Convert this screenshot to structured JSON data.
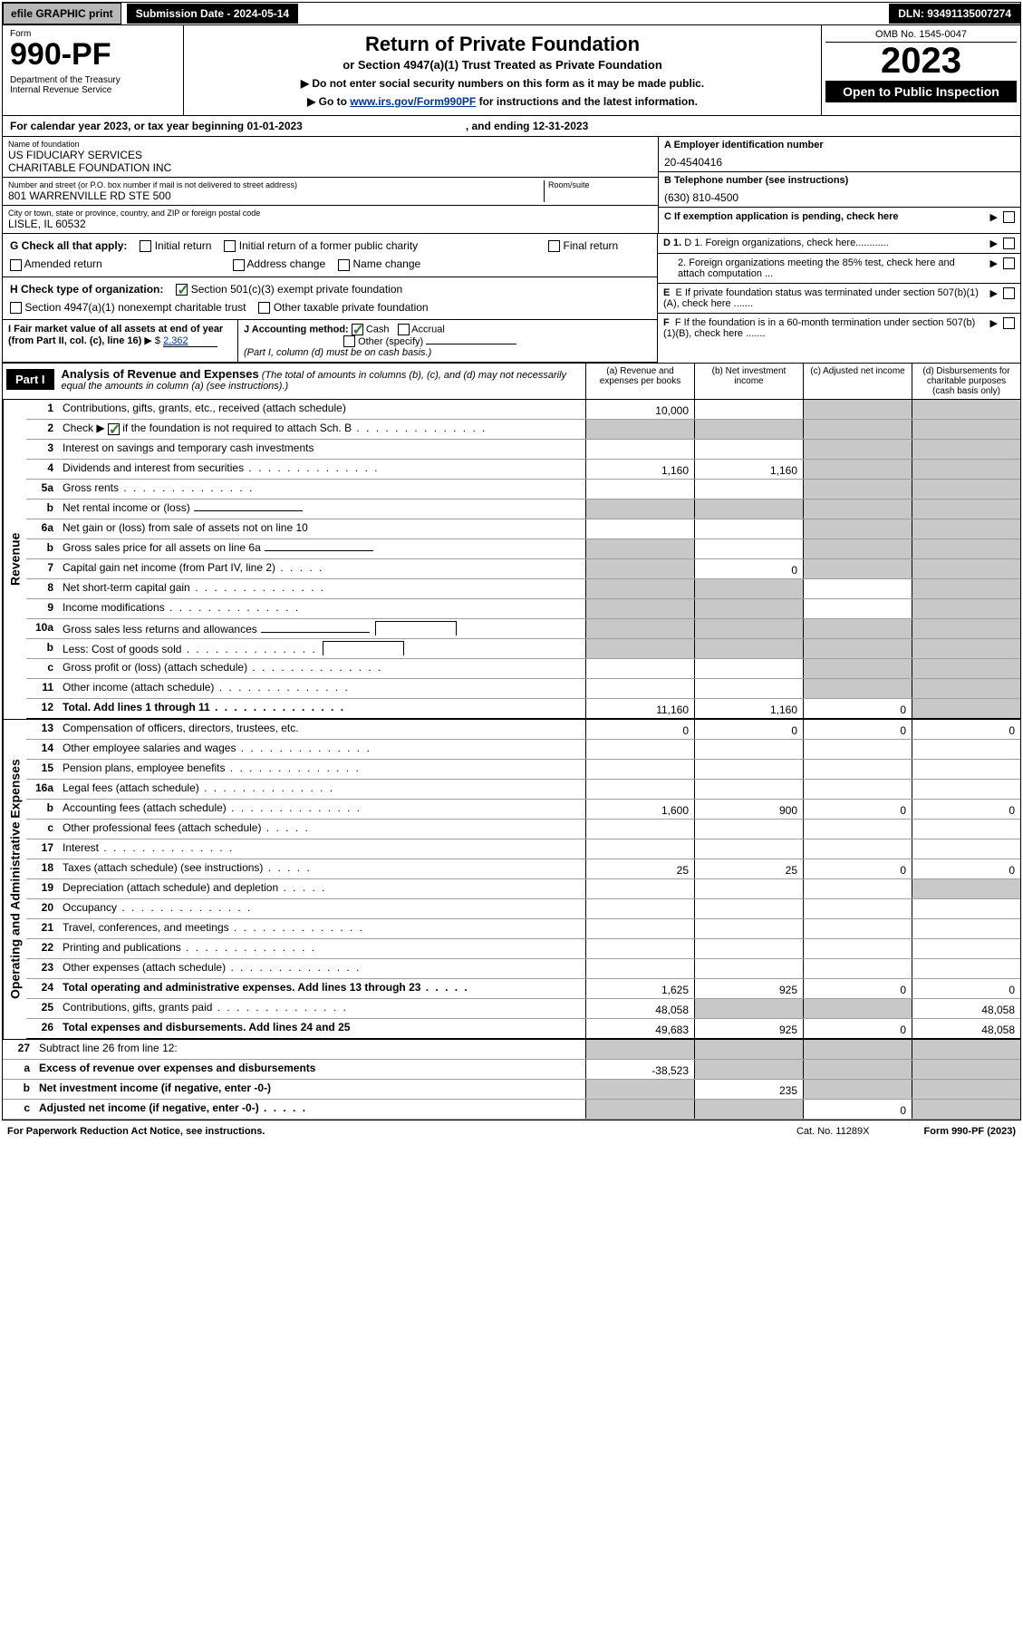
{
  "topbar": {
    "efile": "efile GRAPHIC print",
    "submission": "Submission Date - 2024-05-14",
    "dln": "DLN: 93491135007274"
  },
  "header": {
    "form_label": "Form",
    "form_number": "990-PF",
    "dept": "Department of the Treasury\nInternal Revenue Service",
    "title": "Return of Private Foundation",
    "subtitle": "or Section 4947(a)(1) Trust Treated as Private Foundation",
    "instr1": "▶ Do not enter social security numbers on this form as it may be made public.",
    "instr2_pre": "▶ Go to ",
    "instr2_link": "www.irs.gov/Form990PF",
    "instr2_post": " for instructions and the latest information.",
    "omb": "OMB No. 1545-0047",
    "year": "2023",
    "open_public": "Open to Public Inspection"
  },
  "cal": {
    "pre": "For calendar year 2023, or tax year beginning ",
    "begin": "01-01-2023",
    "mid": ", and ending ",
    "end": "12-31-2023"
  },
  "name": {
    "lbl": "Name of foundation",
    "val": "US FIDUCIARY SERVICES\nCHARITABLE FOUNDATION INC"
  },
  "ein": {
    "lbl": "A Employer identification number",
    "val": "20-4540416"
  },
  "addr": {
    "lbl": "Number and street (or P.O. box number if mail is not delivered to street address)",
    "val": "801 WARRENVILLE RD STE 500",
    "room_lbl": "Room/suite"
  },
  "phone": {
    "lbl": "B Telephone number (see instructions)",
    "val": "(630) 810-4500"
  },
  "city": {
    "lbl": "City or town, state or province, country, and ZIP or foreign postal code",
    "val": "LISLE, IL  60532"
  },
  "c_txt": "C If exemption application is pending, check here",
  "g": {
    "lbl": "G Check all that apply:",
    "o1": "Initial return",
    "o2": "Initial return of a former public charity",
    "o3": "Final return",
    "o4": "Amended return",
    "o5": "Address change",
    "o6": "Name change"
  },
  "d": {
    "d1": "D 1. Foreign organizations, check here............",
    "d2": "2. Foreign organizations meeting the 85% test, check here and attach computation ..."
  },
  "h": {
    "lbl": "H Check type of organization:",
    "o1": "Section 501(c)(3) exempt private foundation",
    "o2": "Section 4947(a)(1) nonexempt charitable trust",
    "o3": "Other taxable private foundation"
  },
  "e_txt": "E  If private foundation status was terminated under section 507(b)(1)(A), check here .......",
  "i": {
    "lbl": "I Fair market value of all assets at end of year (from Part II, col. (c), line 16)",
    "val_pre": "▶ $",
    "val": "2,362"
  },
  "j": {
    "lbl": "J Accounting method:",
    "o1": "Cash",
    "o2": "Accrual",
    "o3": "Other (specify)",
    "note": "(Part I, column (d) must be on cash basis.)"
  },
  "f_txt": "F  If the foundation is in a 60-month termination under section 507(b)(1)(B), check here .......",
  "part1": {
    "label": "Part I",
    "title": "Analysis of Revenue and Expenses",
    "note": "(The total of amounts in columns (b), (c), and (d) may not necessarily equal the amounts in column (a) (see instructions).)",
    "col_a": "(a)  Revenue and expenses per books",
    "col_b": "(b)  Net investment income",
    "col_c": "(c)  Adjusted net income",
    "col_d": "(d)  Disbursements for charitable purposes (cash basis only)"
  },
  "side_labels": {
    "rev": "Revenue",
    "exp": "Operating and Administrative Expenses"
  },
  "lines": {
    "1": {
      "t": "Contributions, gifts, grants, etc., received (attach schedule)",
      "a": "10,000"
    },
    "2": {
      "t_pre": "Check ▶",
      "t_post": " if the foundation is not required to attach Sch. B"
    },
    "3": {
      "t": "Interest on savings and temporary cash investments"
    },
    "4": {
      "t": "Dividends and interest from securities",
      "a": "1,160",
      "b": "1,160"
    },
    "5a": {
      "t": "Gross rents"
    },
    "5b": {
      "t": "Net rental income or (loss)"
    },
    "6a": {
      "t": "Net gain or (loss) from sale of assets not on line 10"
    },
    "6b": {
      "t": "Gross sales price for all assets on line 6a"
    },
    "7": {
      "t": "Capital gain net income (from Part IV, line 2)",
      "b": "0"
    },
    "8": {
      "t": "Net short-term capital gain"
    },
    "9": {
      "t": "Income modifications"
    },
    "10a": {
      "t": "Gross sales less returns and allowances"
    },
    "10b": {
      "t": "Less: Cost of goods sold"
    },
    "10c": {
      "t": "Gross profit or (loss) (attach schedule)"
    },
    "11": {
      "t": "Other income (attach schedule)"
    },
    "12": {
      "t": "Total. Add lines 1 through 11",
      "a": "11,160",
      "b": "1,160",
      "c": "0"
    },
    "13": {
      "t": "Compensation of officers, directors, trustees, etc.",
      "a": "0",
      "b": "0",
      "c": "0",
      "d": "0"
    },
    "14": {
      "t": "Other employee salaries and wages"
    },
    "15": {
      "t": "Pension plans, employee benefits"
    },
    "16a": {
      "t": "Legal fees (attach schedule)"
    },
    "16b": {
      "t": "Accounting fees (attach schedule)",
      "a": "1,600",
      "b": "900",
      "c": "0",
      "d": "0"
    },
    "16c": {
      "t": "Other professional fees (attach schedule)"
    },
    "17": {
      "t": "Interest"
    },
    "18": {
      "t": "Taxes (attach schedule) (see instructions)",
      "a": "25",
      "b": "25",
      "c": "0",
      "d": "0"
    },
    "19": {
      "t": "Depreciation (attach schedule) and depletion"
    },
    "20": {
      "t": "Occupancy"
    },
    "21": {
      "t": "Travel, conferences, and meetings"
    },
    "22": {
      "t": "Printing and publications"
    },
    "23": {
      "t": "Other expenses (attach schedule)"
    },
    "24": {
      "t": "Total operating and administrative expenses. Add lines 13 through 23",
      "a": "1,625",
      "b": "925",
      "c": "0",
      "d": "0"
    },
    "25": {
      "t": "Contributions, gifts, grants paid",
      "a": "48,058",
      "d": "48,058"
    },
    "26": {
      "t": "Total expenses and disbursements. Add lines 24 and 25",
      "a": "49,683",
      "b": "925",
      "c": "0",
      "d": "48,058"
    },
    "27": {
      "t": "Subtract line 26 from line 12:"
    },
    "27a": {
      "t": "Excess of revenue over expenses and disbursements",
      "a": "-38,523"
    },
    "27b": {
      "t": "Net investment income (if negative, enter -0-)",
      "b": "235"
    },
    "27c": {
      "t": "Adjusted net income (if negative, enter -0-)",
      "c": "0"
    }
  },
  "footer": {
    "left": "For Paperwork Reduction Act Notice, see instructions.",
    "mid": "Cat. No. 11289X",
    "right": "Form 990-PF (2023)"
  },
  "colors": {
    "black": "#000000",
    "grey_btn": "#b8b8b8",
    "grey_cell": "#c8c8c8",
    "link": "#003399",
    "check": "#2e7d32"
  }
}
